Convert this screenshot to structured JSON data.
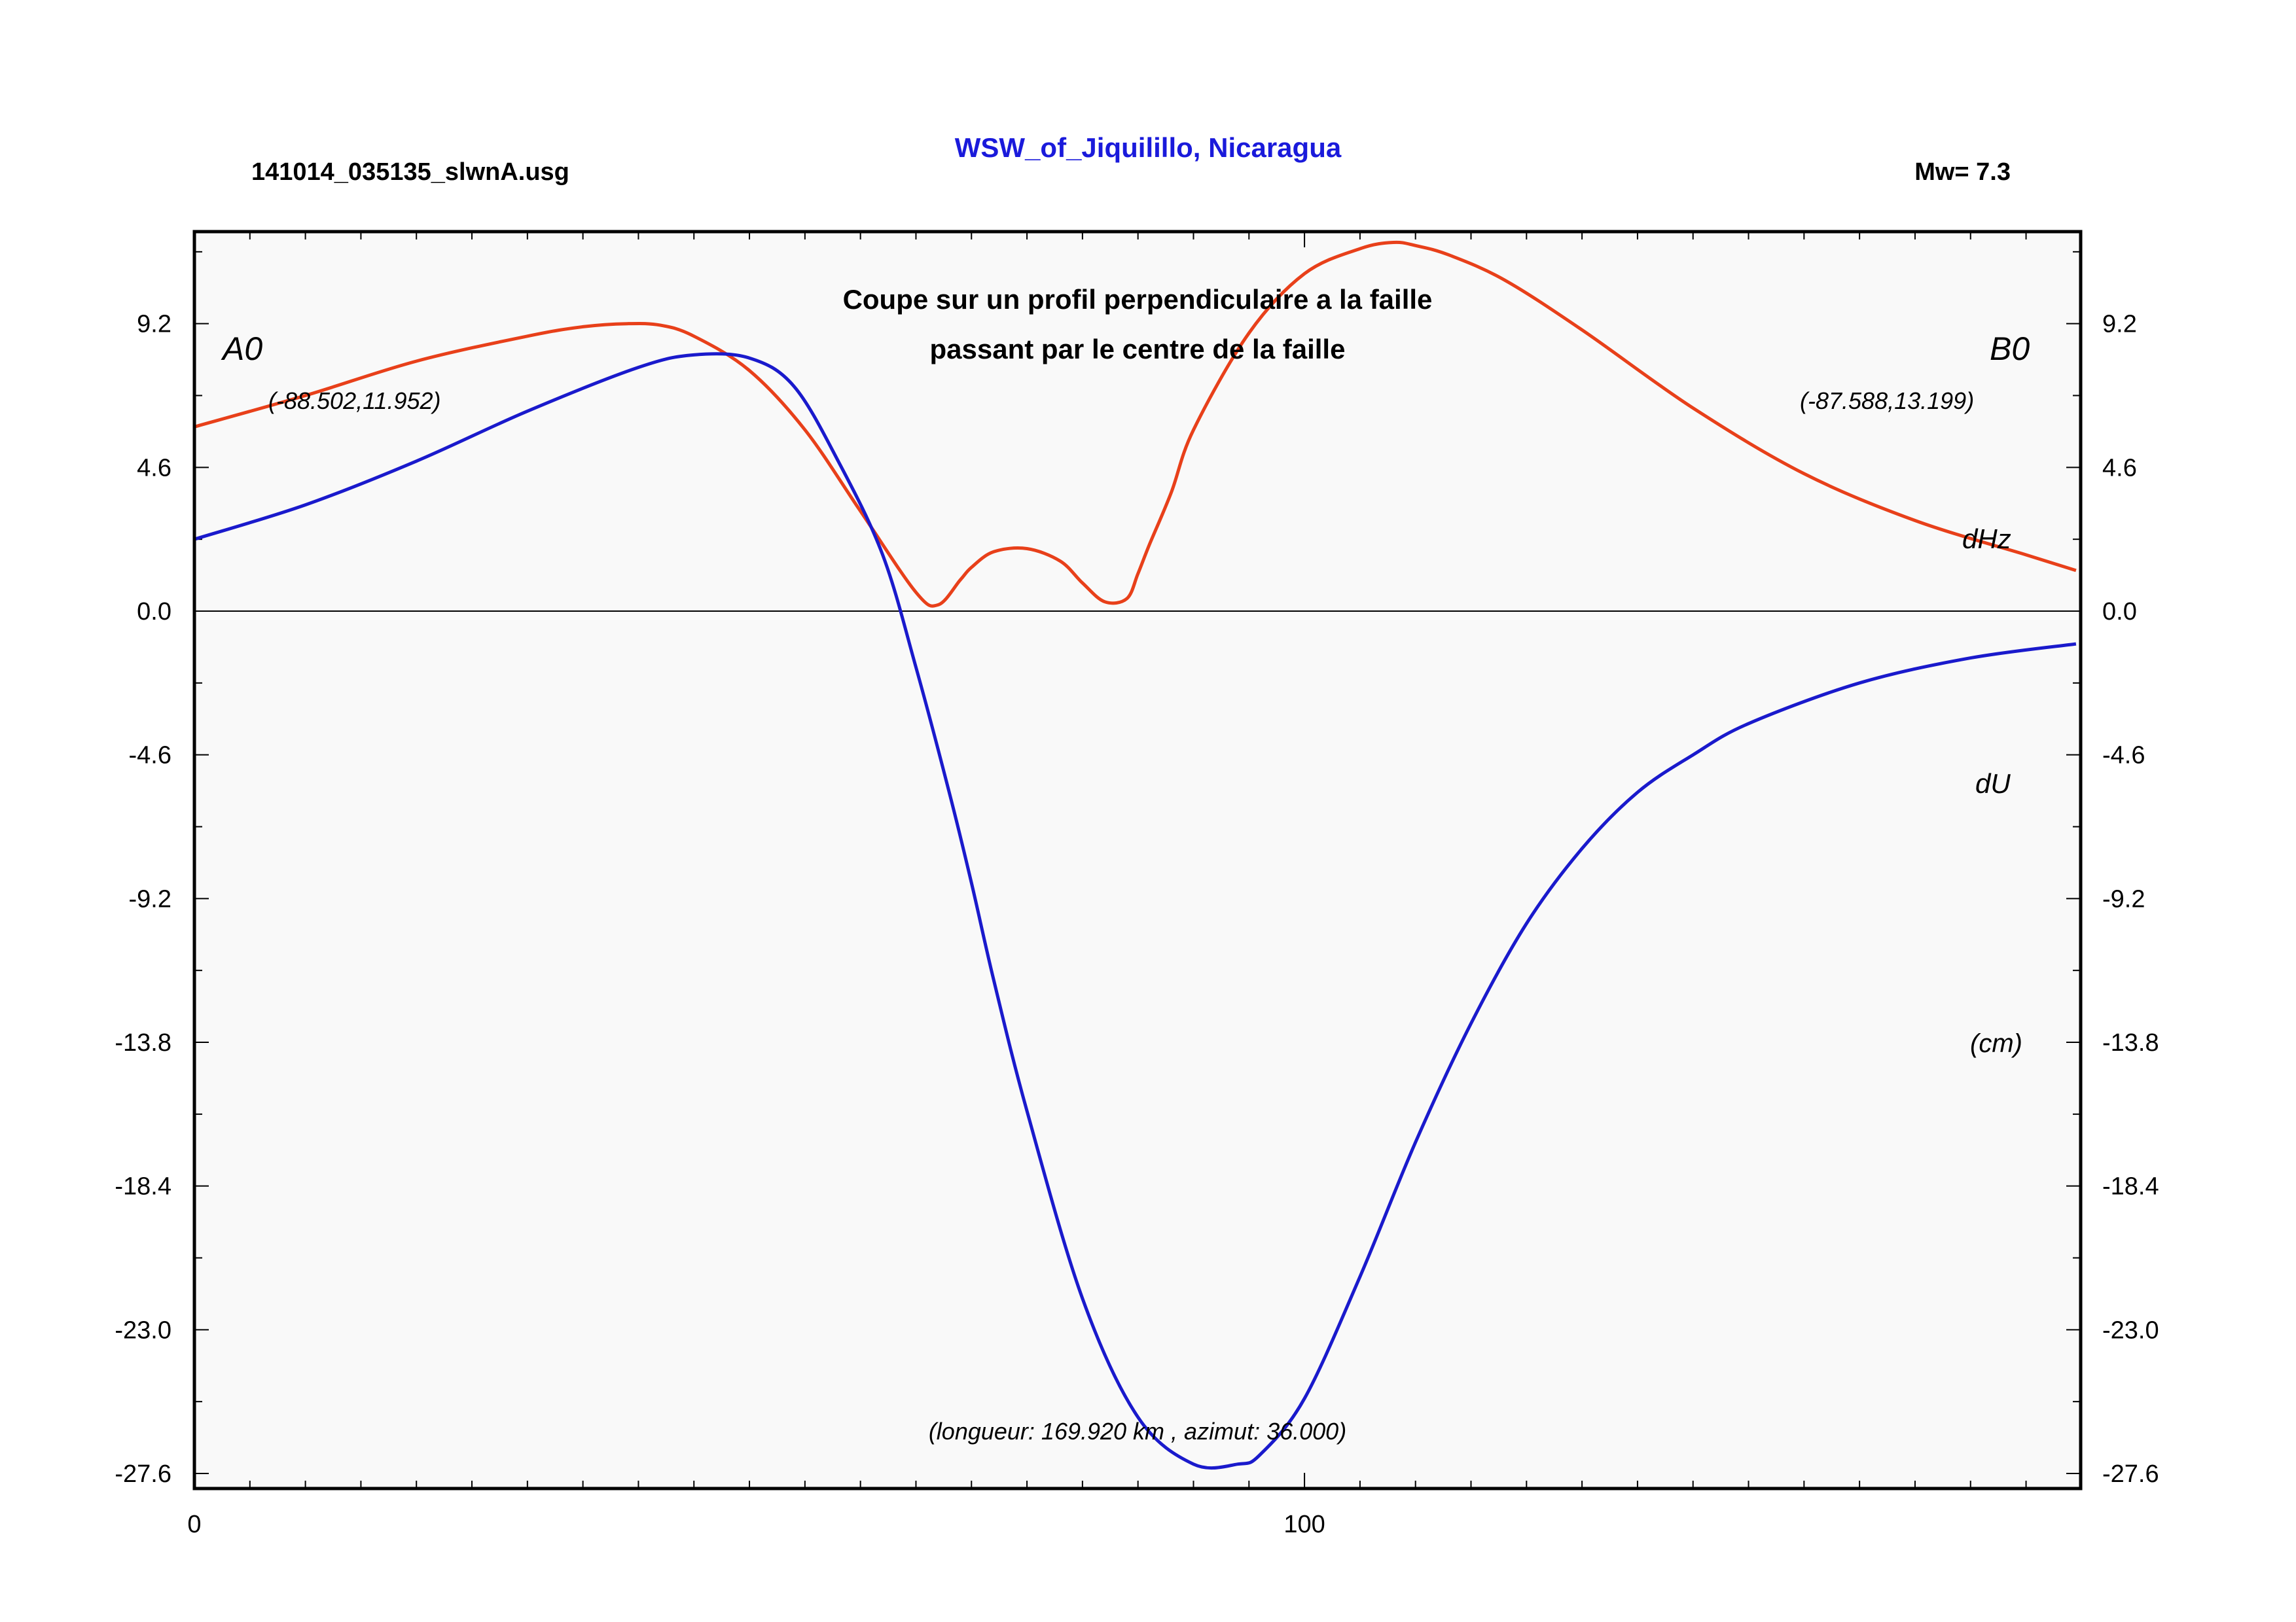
{
  "header": {
    "file": "141014_035135_slwnA.usg",
    "title": "WSW_of_Jiquilillo, Nicaragua",
    "magnitude": "Mw= 7.3"
  },
  "colors": {
    "dHz": "#e8401a",
    "dU": "#1a1acc",
    "title": "#1a1adb",
    "plot_bg": "#f9f9f9"
  },
  "chart_data": {
    "type": "line",
    "title_lines": [
      "Coupe sur un profil perpendiculaire a la faille",
      "passant par le centre de la faille"
    ],
    "xlim": [
      0,
      169.92
    ],
    "ylim": [
      -27.6,
      11.6
    ],
    "yticks": [
      "9.2",
      "4.6",
      "0.0",
      "-4.6",
      "-9.2",
      "-13.8",
      "-18.4",
      "-23.0",
      "-27.6"
    ],
    "ytick_values": [
      9.2,
      4.6,
      0.0,
      -4.6,
      -9.2,
      -13.8,
      -18.4,
      -23.0,
      -27.6
    ],
    "xticks": [
      "0",
      "100"
    ],
    "xtick_values": [
      0,
      100
    ],
    "point_a": {
      "name": "A0",
      "coords": "(-88.502,11.952)"
    },
    "point_b": {
      "name": "B0",
      "coords": "(-87.588,13.199)"
    },
    "unit": "(cm)",
    "profile_info": "(longueur: 169.920 km , azimut: 36.000)",
    "series": [
      {
        "name": "dHz",
        "x": [
          0,
          10,
          20,
          30,
          35,
          39,
          42,
          45,
          50,
          55,
          60,
          65,
          67,
          69,
          70,
          72,
          75,
          78,
          80,
          82,
          84,
          85,
          86,
          88,
          90,
          95,
          100,
          105,
          108,
          110,
          113,
          118,
          125,
          135,
          145,
          155,
          165,
          169.5
        ],
        "y": [
          5.9,
          6.9,
          8.0,
          8.8,
          9.1,
          9.2,
          9.15,
          8.8,
          7.7,
          5.8,
          3.2,
          0.6,
          0.2,
          1.0,
          1.4,
          1.9,
          2.0,
          1.6,
          0.9,
          0.3,
          0.4,
          1.2,
          2.1,
          3.8,
          5.8,
          8.9,
          10.8,
          11.6,
          11.8,
          11.7,
          11.4,
          10.6,
          9.0,
          6.5,
          4.4,
          2.9,
          1.8,
          1.3
        ]
      },
      {
        "name": "dU",
        "x": [
          0,
          10,
          20,
          30,
          40,
          45,
          50,
          54,
          58,
          62,
          65,
          68,
          70,
          72,
          75,
          80,
          85,
          90,
          94,
          96,
          100,
          105,
          110,
          115,
          120,
          125,
          130,
          135,
          140,
          150,
          160,
          169.5
        ],
        "y": [
          2.3,
          3.4,
          4.8,
          6.4,
          7.8,
          8.2,
          8.1,
          7.2,
          4.8,
          1.8,
          -1.8,
          -5.8,
          -8.7,
          -11.8,
          -16.0,
          -22.0,
          -25.8,
          -27.3,
          -27.3,
          -27.0,
          -25.2,
          -21.3,
          -17.0,
          -13.2,
          -10.0,
          -7.6,
          -5.8,
          -4.6,
          -3.6,
          -2.3,
          -1.5,
          -1.05
        ]
      }
    ],
    "series_label_dHz": "dHz",
    "series_label_dU": "dU",
    "grid": false
  }
}
